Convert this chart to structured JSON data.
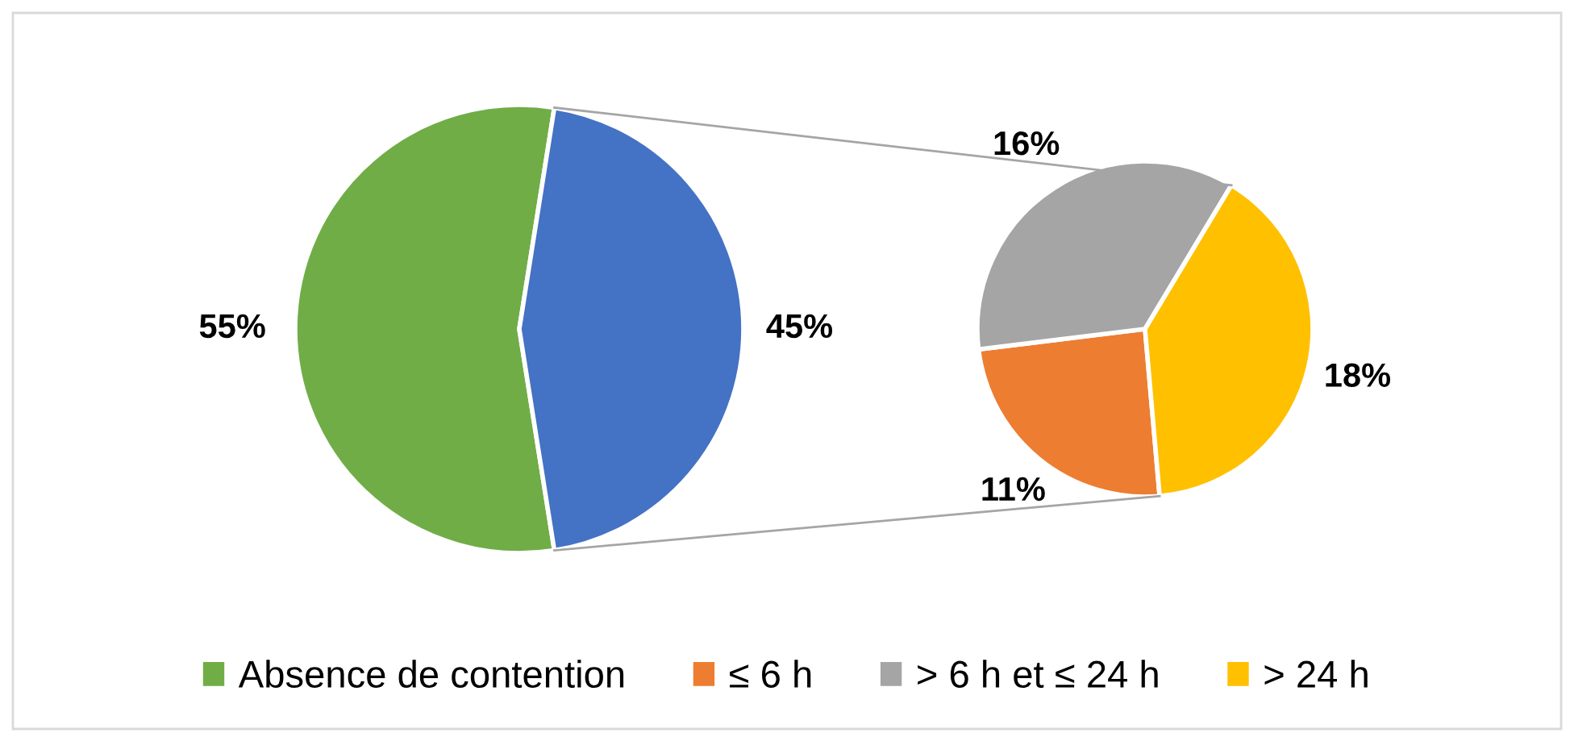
{
  "chart_data": [
    {
      "type": "pie",
      "categories": [
        "Absence de contention",
        null
      ],
      "values": [
        55,
        45
      ],
      "colors": [
        "#70ad47",
        "#4472c4"
      ],
      "value_labels": [
        "55%",
        "45%"
      ],
      "legend": "bottom"
    },
    {
      "type": "pie",
      "categories": [
        "≤ 6 h",
        "> 6 h et ≤ 24 h",
        "> 24 h"
      ],
      "values": [
        11,
        16,
        18
      ],
      "colors": [
        "#ed7d31",
        "#a5a5a5",
        "#ffc000"
      ],
      "value_labels": [
        "11%",
        "16%",
        "18%"
      ],
      "legend": "bottom"
    }
  ]
}
